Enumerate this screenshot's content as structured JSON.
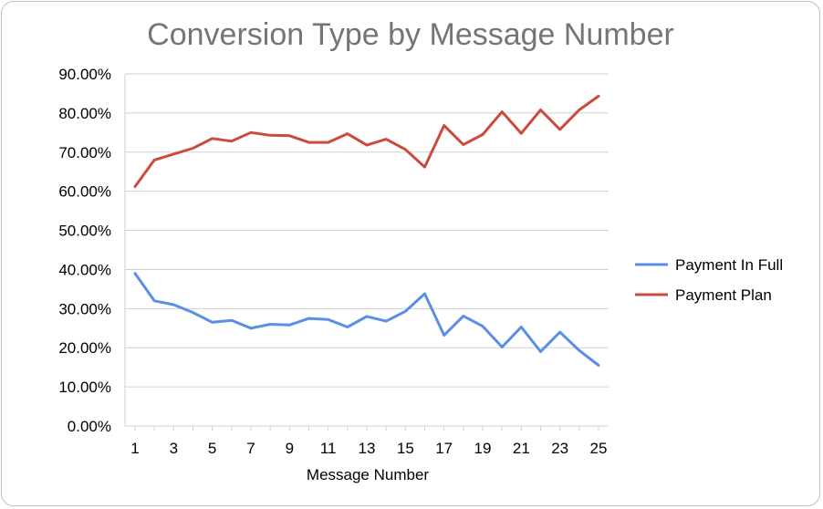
{
  "chart_data": {
    "type": "line",
    "title": "Conversion Type by Message Number",
    "xlabel": "Message Number",
    "ylabel": "",
    "ylim": [
      0,
      0.9
    ],
    "yticks": [
      "0.00%",
      "10.00%",
      "20.00%",
      "30.00%",
      "40.00%",
      "50.00%",
      "60.00%",
      "70.00%",
      "80.00%",
      "90.00%"
    ],
    "x": [
      1,
      2,
      3,
      4,
      5,
      6,
      7,
      8,
      9,
      10,
      11,
      12,
      13,
      14,
      15,
      16,
      17,
      18,
      19,
      20,
      21,
      22,
      23,
      24,
      25
    ],
    "xtick_labels": [
      "1",
      "3",
      "5",
      "7",
      "9",
      "11",
      "13",
      "15",
      "17",
      "19",
      "21",
      "23",
      "25"
    ],
    "grid": true,
    "legend_position": "right",
    "series": [
      {
        "name": "Payment In Full",
        "color": "#5b8ee6",
        "values": [
          0.39,
          0.32,
          0.31,
          0.29,
          0.265,
          0.27,
          0.25,
          0.26,
          0.258,
          0.275,
          0.272,
          0.253,
          0.28,
          0.268,
          0.293,
          0.338,
          0.232,
          0.281,
          0.255,
          0.202,
          0.253,
          0.19,
          0.24,
          0.193,
          0.155
        ]
      },
      {
        "name": "Payment Plan",
        "color": "#cc4a3c",
        "values": [
          0.612,
          0.68,
          0.695,
          0.71,
          0.735,
          0.728,
          0.75,
          0.743,
          0.742,
          0.725,
          0.725,
          0.747,
          0.718,
          0.733,
          0.707,
          0.662,
          0.768,
          0.719,
          0.745,
          0.803,
          0.748,
          0.808,
          0.758,
          0.808,
          0.843
        ]
      }
    ]
  }
}
